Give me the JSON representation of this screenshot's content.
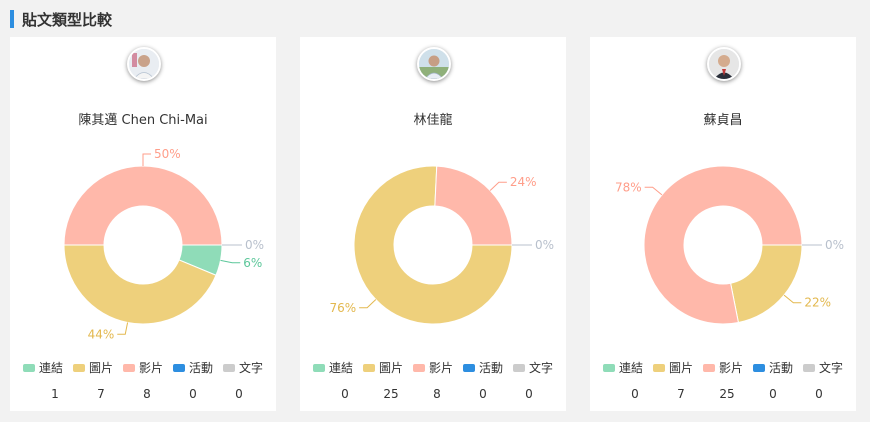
{
  "section_title": "貼文類型比較",
  "legend_labels": [
    "連結",
    "圖片",
    "影片",
    "活動",
    "文字"
  ],
  "legend_colors": [
    "#8fdcb8",
    "#eed07c",
    "#ffb8aa",
    "#2d8ee0",
    "#cccccc"
  ],
  "cards": [
    {
      "name": "陳其邁 Chen Chi-Mai",
      "avatar_icon": "politician-portrait-icon",
      "counts": [
        1,
        7,
        8,
        0,
        0
      ],
      "percent_labels": [
        "6%",
        "44%",
        "50%",
        "0%",
        "0%"
      ],
      "chart_data": {
        "type": "pie",
        "title": "陳其邁 Chen Chi-Mai",
        "categories": [
          "連結",
          "圖片",
          "影片",
          "活動",
          "文字"
        ],
        "values": [
          1,
          7,
          8,
          0,
          0
        ],
        "percentages": [
          6,
          44,
          50,
          0,
          0
        ],
        "legend_position": "bottom"
      }
    },
    {
      "name": "林佳龍",
      "avatar_icon": "politician-portrait-icon",
      "counts": [
        0,
        25,
        8,
        0,
        0
      ],
      "percent_labels": [
        "0%",
        "76%",
        "24%",
        "0%",
        "0%"
      ],
      "chart_data": {
        "type": "pie",
        "title": "林佳龍",
        "categories": [
          "連結",
          "圖片",
          "影片",
          "活動",
          "文字"
        ],
        "values": [
          0,
          25,
          8,
          0,
          0
        ],
        "percentages": [
          0,
          76,
          24,
          0,
          0
        ],
        "legend_position": "bottom"
      }
    },
    {
      "name": "蘇貞昌",
      "avatar_icon": "politician-portrait-icon",
      "counts": [
        0,
        7,
        25,
        0,
        0
      ],
      "percent_labels": [
        "0%",
        "22%",
        "78%",
        "0%",
        "0%"
      ],
      "chart_data": {
        "type": "pie",
        "title": "蘇貞昌",
        "categories": [
          "連結",
          "圖片",
          "影片",
          "活動",
          "文字"
        ],
        "values": [
          0,
          7,
          25,
          0,
          0
        ],
        "percentages": [
          0,
          22,
          78,
          0,
          0
        ],
        "legend_position": "bottom"
      }
    }
  ]
}
